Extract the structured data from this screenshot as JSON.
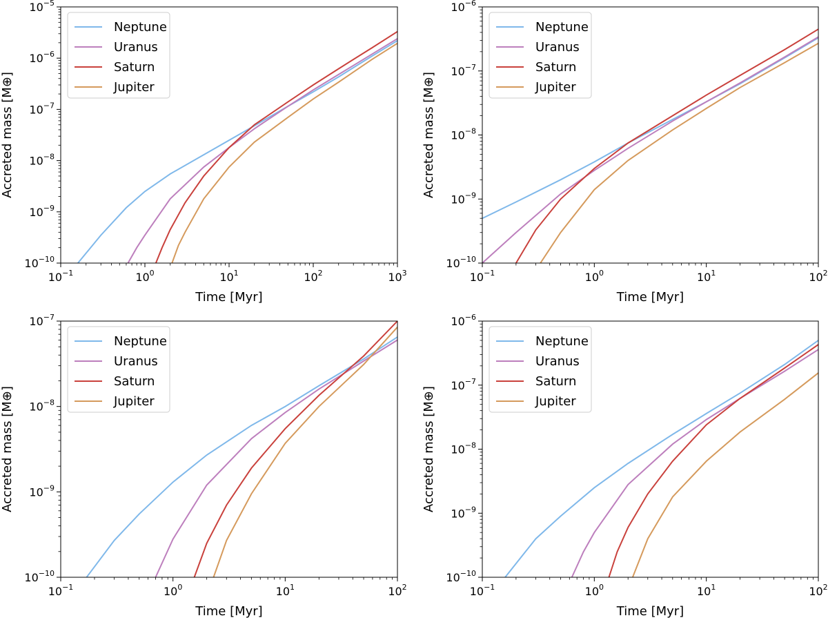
{
  "figure": {
    "legend_position": "upper-left",
    "panel_layout": "2x2 grid"
  },
  "chart_data": [
    {
      "type": "line",
      "panel": "top-left",
      "xlabel": "Time [Myr]",
      "ylabel": "Accreted mass [M⊕]",
      "xscale": "log",
      "yscale": "log",
      "xlim": [
        0.1,
        1000
      ],
      "ylim": [
        1e-10,
        1e-05
      ],
      "grid": false,
      "legend": "upper-left",
      "x_tick_labels": [
        {
          "base": "10",
          "exp": "−1"
        },
        {
          "base": "10",
          "exp": "0"
        },
        {
          "base": "10",
          "exp": "1"
        },
        {
          "base": "10",
          "exp": "2"
        },
        {
          "base": "10",
          "exp": "3"
        }
      ],
      "y_tick_labels": [
        {
          "base": "10",
          "exp": "−10"
        },
        {
          "base": "10",
          "exp": "−9"
        },
        {
          "base": "10",
          "exp": "−8"
        },
        {
          "base": "10",
          "exp": "−7"
        },
        {
          "base": "10",
          "exp": "−6"
        },
        {
          "base": "10",
          "exp": "−5"
        }
      ],
      "series": [
        {
          "name": "Neptune",
          "color": "#7fb8ea",
          "x": [
            0.16,
            0.3,
            0.6,
            1,
            2,
            5,
            10,
            20,
            50,
            100,
            200,
            500,
            1000
          ],
          "y": [
            1e-10,
            3.5e-10,
            1.2e-09,
            2.5e-09,
            5.5e-09,
            1.3e-08,
            2.5e-08,
            4.8e-08,
            1.15e-07,
            2.2e-07,
            4.3e-07,
            1.1e-06,
            2.2e-06
          ]
        },
        {
          "name": "Uranus",
          "color": "#bd7fbd",
          "x": [
            0.63,
            0.8,
            1,
            2,
            5,
            10,
            20,
            50,
            100,
            200,
            500,
            1000
          ],
          "y": [
            1e-10,
            2e-10,
            3.5e-10,
            1.8e-09,
            7.5e-09,
            1.8e-08,
            4.2e-08,
            1.15e-07,
            2.4e-07,
            4.8e-07,
            1.2e-06,
            2.4e-06
          ]
        },
        {
          "name": "Saturn",
          "color": "#c9413c",
          "x": [
            1.35,
            1.6,
            2,
            3,
            5,
            10,
            20,
            50,
            100,
            200,
            500,
            1000
          ],
          "y": [
            1e-10,
            2e-10,
            4.5e-10,
            1.5e-09,
            5e-09,
            1.8e-08,
            5e-08,
            1.4e-07,
            3e-07,
            6.2e-07,
            1.6e-06,
            3.3e-06
          ]
        },
        {
          "name": "Jupiter",
          "color": "#d59a5c",
          "x": [
            2.1,
            2.5,
            3,
            5,
            10,
            20,
            50,
            100,
            200,
            500,
            1000
          ],
          "y": [
            1e-10,
            2.2e-10,
            4e-10,
            1.8e-09,
            7.5e-09,
            2.3e-08,
            7e-08,
            1.6e-07,
            3.4e-07,
            9.5e-07,
            1.95e-06
          ]
        }
      ]
    },
    {
      "type": "line",
      "panel": "top-right",
      "xlabel": "Time [Myr]",
      "ylabel": "Accreted mass [M⊕]",
      "xscale": "log",
      "yscale": "log",
      "xlim": [
        0.1,
        100
      ],
      "ylim": [
        1e-10,
        1e-06
      ],
      "grid": false,
      "legend": "upper-left",
      "x_tick_labels": [
        {
          "base": "10",
          "exp": "−1"
        },
        {
          "base": "10",
          "exp": "0"
        },
        {
          "base": "10",
          "exp": "1"
        },
        {
          "base": "10",
          "exp": "2"
        }
      ],
      "y_tick_labels": [
        {
          "base": "10",
          "exp": "−10"
        },
        {
          "base": "10",
          "exp": "−9"
        },
        {
          "base": "10",
          "exp": "−8"
        },
        {
          "base": "10",
          "exp": "−7"
        },
        {
          "base": "10",
          "exp": "−6"
        }
      ],
      "series": [
        {
          "name": "Neptune",
          "color": "#7fb8ea",
          "x": [
            0.1,
            0.2,
            0.5,
            1,
            2,
            5,
            10,
            20,
            50,
            100
          ],
          "y": [
            5e-10,
            9e-10,
            2e-09,
            3.8e-09,
            7.5e-09,
            1.75e-08,
            3.3e-08,
            6.3e-08,
            1.6e-07,
            3.3e-07
          ]
        },
        {
          "name": "Uranus",
          "color": "#bd7fbd",
          "x": [
            0.1,
            0.2,
            0.5,
            1,
            2,
            5,
            10,
            20,
            50,
            100
          ],
          "y": [
            1e-10,
            3e-10,
            1.2e-09,
            2.8e-09,
            6.2e-09,
            1.65e-08,
            3.3e-08,
            6.5e-08,
            1.65e-07,
            3.4e-07
          ]
        },
        {
          "name": "Saturn",
          "color": "#c9413c",
          "x": [
            0.2,
            0.3,
            0.5,
            1,
            2,
            5,
            10,
            20,
            50,
            100
          ],
          "y": [
            1e-10,
            3.3e-10,
            1e-09,
            3e-09,
            7.5e-09,
            2e-08,
            4.2e-08,
            8.5e-08,
            2.15e-07,
            4.5e-07
          ]
        },
        {
          "name": "Jupiter",
          "color": "#d59a5c",
          "x": [
            0.33,
            0.5,
            1,
            2,
            5,
            10,
            20,
            50,
            100
          ],
          "y": [
            1e-10,
            3e-10,
            1.4e-09,
            4e-09,
            1.2e-08,
            2.6e-08,
            5.5e-08,
            1.35e-07,
            2.7e-07
          ]
        }
      ]
    },
    {
      "type": "line",
      "panel": "bottom-left",
      "xlabel": "Time [Myr]",
      "ylabel": "Accreted mass [M⊕]",
      "xscale": "log",
      "yscale": "log",
      "xlim": [
        0.1,
        100
      ],
      "ylim": [
        1e-10,
        1e-07
      ],
      "grid": false,
      "legend": "upper-left",
      "x_tick_labels": [
        {
          "base": "10",
          "exp": "−1"
        },
        {
          "base": "10",
          "exp": "0"
        },
        {
          "base": "10",
          "exp": "1"
        },
        {
          "base": "10",
          "exp": "2"
        }
      ],
      "y_tick_labels": [
        {
          "base": "10",
          "exp": "−10"
        },
        {
          "base": "10",
          "exp": "−9"
        },
        {
          "base": "10",
          "exp": "−8"
        },
        {
          "base": "10",
          "exp": "−7"
        }
      ],
      "series": [
        {
          "name": "Neptune",
          "color": "#7fb8ea",
          "x": [
            0.17,
            0.3,
            0.5,
            1,
            2,
            5,
            10,
            20,
            50,
            100
          ],
          "y": [
            1e-10,
            2.7e-10,
            5.5e-10,
            1.3e-09,
            2.7e-09,
            6e-09,
            1e-08,
            1.75e-08,
            3.6e-08,
            6.5e-08
          ]
        },
        {
          "name": "Uranus",
          "color": "#bd7fbd",
          "x": [
            0.7,
            1,
            2,
            5,
            10,
            20,
            50,
            100
          ],
          "y": [
            1e-10,
            2.8e-10,
            1.2e-09,
            4.2e-09,
            8.5e-09,
            1.6e-08,
            3.4e-08,
            6e-08
          ]
        },
        {
          "name": "Saturn",
          "color": "#c9413c",
          "x": [
            1.55,
            2,
            3,
            5,
            10,
            20,
            50,
            100
          ],
          "y": [
            1e-10,
            2.5e-10,
            7e-10,
            1.9e-09,
            5.5e-09,
            1.35e-08,
            3.9e-08,
            1e-07
          ]
        },
        {
          "name": "Jupiter",
          "color": "#d59a5c",
          "x": [
            2.3,
            3,
            5,
            10,
            20,
            50,
            100
          ],
          "y": [
            1e-10,
            2.7e-10,
            9.5e-10,
            3.7e-09,
            1e-08,
            3.1e-08,
            8.5e-08
          ]
        }
      ]
    },
    {
      "type": "line",
      "panel": "bottom-right",
      "xlabel": "Time [Myr]",
      "ylabel": "Accreted mass [M⊕]",
      "xscale": "log",
      "yscale": "log",
      "xlim": [
        0.1,
        100
      ],
      "ylim": [
        1e-10,
        1e-06
      ],
      "grid": false,
      "legend": "upper-left",
      "x_tick_labels": [
        {
          "base": "10",
          "exp": "−1"
        },
        {
          "base": "10",
          "exp": "0"
        },
        {
          "base": "10",
          "exp": "1"
        },
        {
          "base": "10",
          "exp": "2"
        }
      ],
      "y_tick_labels": [
        {
          "base": "10",
          "exp": "−10"
        },
        {
          "base": "10",
          "exp": "−9"
        },
        {
          "base": "10",
          "exp": "−8"
        },
        {
          "base": "10",
          "exp": "−7"
        },
        {
          "base": "10",
          "exp": "−6"
        }
      ],
      "series": [
        {
          "name": "Neptune",
          "color": "#7fb8ea",
          "x": [
            0.16,
            0.3,
            0.5,
            1,
            2,
            5,
            10,
            20,
            50,
            100
          ],
          "y": [
            1e-10,
            4e-10,
            9e-10,
            2.5e-09,
            6e-09,
            1.7e-08,
            3.6e-08,
            7.5e-08,
            2.1e-07,
            5e-07
          ]
        },
        {
          "name": "Uranus",
          "color": "#bd7fbd",
          "x": [
            0.63,
            0.8,
            1,
            2,
            5,
            10,
            20,
            50,
            100
          ],
          "y": [
            1e-10,
            2.5e-10,
            5e-10,
            2.8e-09,
            1.2e-08,
            2.9e-08,
            6.2e-08,
            1.65e-07,
            3.6e-07
          ]
        },
        {
          "name": "Saturn",
          "color": "#c9413c",
          "x": [
            1.35,
            1.6,
            2,
            3,
            5,
            10,
            20,
            50,
            100
          ],
          "y": [
            1e-10,
            2.5e-10,
            6e-10,
            2e-09,
            6.5e-09,
            2.4e-08,
            6.2e-08,
            1.85e-07,
            4.3e-07
          ]
        },
        {
          "name": "Jupiter",
          "color": "#d59a5c",
          "x": [
            2.2,
            3,
            5,
            10,
            20,
            50,
            100
          ],
          "y": [
            1e-10,
            4e-10,
            1.8e-09,
            6.5e-09,
            1.85e-08,
            6e-08,
            1.55e-07
          ]
        }
      ]
    }
  ]
}
